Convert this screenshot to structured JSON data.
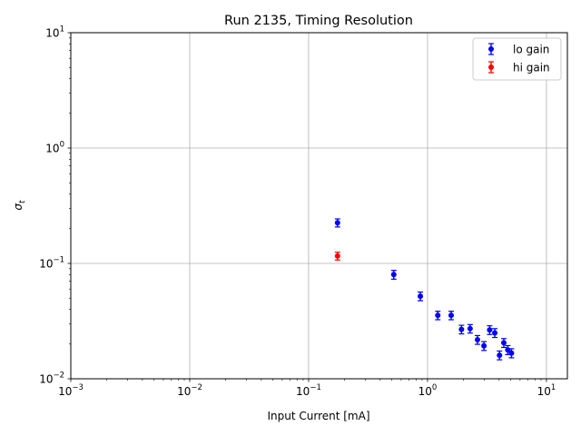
{
  "chart_data": {
    "type": "scatter",
    "title": "Run 2135, Timing Resolution",
    "xlabel": "Input Current [mA]",
    "ylabel": "σt",
    "ylabel_main": "σ",
    "ylabel_sub": "t",
    "x_scale": "log",
    "y_scale": "log",
    "xlim": [
      0.001,
      15
    ],
    "ylim": [
      0.01,
      10
    ],
    "grid": true,
    "legend_position": "top-right",
    "x_ticks": [
      {
        "value": 0.001,
        "base": "10",
        "exp": "−3"
      },
      {
        "value": 0.01,
        "base": "10",
        "exp": "−2"
      },
      {
        "value": 0.1,
        "base": "10",
        "exp": "−1"
      },
      {
        "value": 1,
        "base": "10",
        "exp": "0"
      },
      {
        "value": 10,
        "base": "10",
        "exp": "1"
      }
    ],
    "y_ticks": [
      {
        "value": 0.01,
        "base": "10",
        "exp": "−2"
      },
      {
        "value": 0.1,
        "base": "10",
        "exp": "−1"
      },
      {
        "value": 1,
        "base": "10",
        "exp": "0"
      },
      {
        "value": 10,
        "base": "10",
        "exp": "1"
      }
    ],
    "series": [
      {
        "name": "lo gain",
        "color": "#0000ff",
        "points": [
          {
            "x": 0.175,
            "y": 0.225,
            "err": 0.018
          },
          {
            "x": 0.52,
            "y": 0.08,
            "err": 0.007
          },
          {
            "x": 0.87,
            "y": 0.052,
            "err": 0.0045
          },
          {
            "x": 1.22,
            "y": 0.0355,
            "err": 0.003
          },
          {
            "x": 1.58,
            "y": 0.0355,
            "err": 0.003
          },
          {
            "x": 1.93,
            "y": 0.0268,
            "err": 0.0023
          },
          {
            "x": 2.28,
            "y": 0.0272,
            "err": 0.0023
          },
          {
            "x": 2.63,
            "y": 0.0218,
            "err": 0.0019
          },
          {
            "x": 2.98,
            "y": 0.0193,
            "err": 0.0017
          },
          {
            "x": 3.33,
            "y": 0.0265,
            "err": 0.0023
          },
          {
            "x": 3.68,
            "y": 0.025,
            "err": 0.0022
          },
          {
            "x": 4.03,
            "y": 0.016,
            "err": 0.0014
          },
          {
            "x": 4.38,
            "y": 0.0205,
            "err": 0.0018
          },
          {
            "x": 4.73,
            "y": 0.0178,
            "err": 0.0016
          },
          {
            "x": 5.08,
            "y": 0.0167,
            "err": 0.0015
          }
        ]
      },
      {
        "name": "hi gain",
        "color": "#ff0000",
        "points": [
          {
            "x": 0.175,
            "y": 0.116,
            "err": 0.009
          }
        ]
      }
    ]
  }
}
